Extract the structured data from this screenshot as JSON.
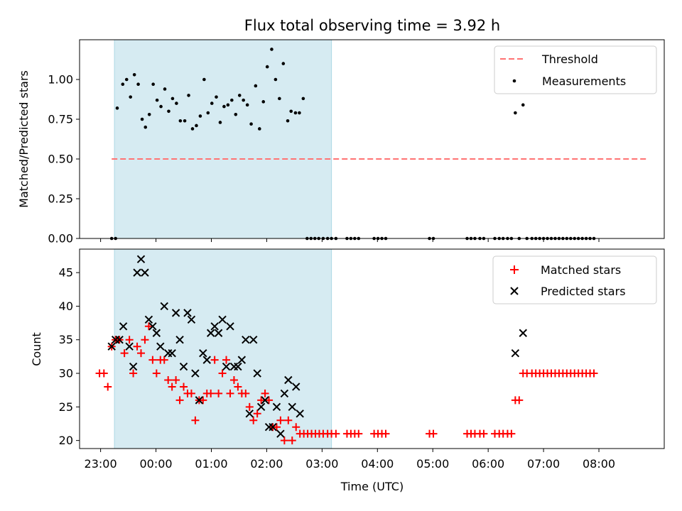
{
  "title": "Flux total observing time = 3.92 h",
  "xlabel": "Time (UTC)",
  "colors": {
    "shade": "#add8e6",
    "threshold": "#ff7373",
    "measure": "#000000",
    "matched": "#ff0000",
    "predicted": "#000000"
  },
  "chart_data": [
    {
      "type": "scatter",
      "ylabel": "Matched/Predicted stars",
      "ylim": [
        0,
        1.25
      ],
      "yticks": [
        0.0,
        0.25,
        0.5,
        0.75,
        1.0
      ],
      "ytick_labels": [
        "0.00",
        "0.25",
        "0.50",
        "0.75",
        "1.00"
      ],
      "xlim": [
        -1.38,
        9.18
      ],
      "shaded_span": [
        -0.75,
        3.17
      ],
      "threshold": {
        "value": 0.5,
        "x": [
          -0.8,
          8.9
        ],
        "label": "Threshold"
      },
      "series": [
        {
          "name": "Measurements",
          "points": [
            [
              -0.8,
              0
            ],
            [
              -0.73,
              0
            ],
            [
              -0.7,
              0.82
            ],
            [
              -0.6,
              0.97
            ],
            [
              -0.53,
              1.0
            ],
            [
              -0.46,
              0.89
            ],
            [
              -0.39,
              1.03
            ],
            [
              -0.32,
              0.97
            ],
            [
              -0.25,
              0.75
            ],
            [
              -0.19,
              0.7
            ],
            [
              -0.12,
              0.78
            ],
            [
              -0.05,
              0.97
            ],
            [
              0.02,
              0.87
            ],
            [
              0.09,
              0.83
            ],
            [
              0.16,
              0.94
            ],
            [
              0.23,
              0.8
            ],
            [
              0.3,
              0.88
            ],
            [
              0.37,
              0.85
            ],
            [
              0.44,
              0.74
            ],
            [
              0.52,
              0.74
            ],
            [
              0.59,
              0.9
            ],
            [
              0.66,
              0.69
            ],
            [
              0.73,
              0.71
            ],
            [
              0.8,
              0.77
            ],
            [
              0.87,
              1.0
            ],
            [
              0.94,
              0.79
            ],
            [
              1.01,
              0.85
            ],
            [
              1.09,
              0.89
            ],
            [
              1.16,
              0.73
            ],
            [
              1.23,
              0.83
            ],
            [
              1.3,
              0.84
            ],
            [
              1.37,
              0.87
            ],
            [
              1.44,
              0.78
            ],
            [
              1.51,
              0.9
            ],
            [
              1.58,
              0.87
            ],
            [
              1.65,
              0.84
            ],
            [
              1.72,
              0.72
            ],
            [
              1.8,
              0.96
            ],
            [
              1.87,
              0.69
            ],
            [
              1.94,
              0.86
            ],
            [
              2.01,
              1.08
            ],
            [
              2.09,
              1.19
            ],
            [
              2.16,
              1.0
            ],
            [
              2.23,
              0.88
            ],
            [
              2.3,
              1.1
            ],
            [
              2.38,
              0.74
            ],
            [
              2.44,
              0.8
            ],
            [
              2.52,
              0.79
            ],
            [
              2.59,
              0.79
            ],
            [
              2.66,
              0.88
            ],
            [
              2.73,
              0
            ],
            [
              2.8,
              0
            ],
            [
              2.87,
              0
            ],
            [
              2.94,
              0
            ],
            [
              3.02,
              0
            ],
            [
              3.1,
              0
            ],
            [
              3.17,
              0
            ],
            [
              3.25,
              0
            ],
            [
              3.45,
              0
            ],
            [
              3.52,
              0
            ],
            [
              3.59,
              0
            ],
            [
              3.66,
              0
            ],
            [
              3.94,
              0
            ],
            [
              4.01,
              0
            ],
            [
              4.08,
              0
            ],
            [
              4.15,
              0
            ],
            [
              4.94,
              0
            ],
            [
              5.01,
              0
            ],
            [
              5.62,
              0
            ],
            [
              5.69,
              0
            ],
            [
              5.76,
              0
            ],
            [
              5.85,
              0
            ],
            [
              5.92,
              0
            ],
            [
              6.12,
              0
            ],
            [
              6.2,
              0
            ],
            [
              6.27,
              0
            ],
            [
              6.35,
              0
            ],
            [
              6.42,
              0
            ],
            [
              6.49,
              0.79
            ],
            [
              6.56,
              0
            ],
            [
              6.63,
              0.84
            ],
            [
              6.7,
              0
            ],
            [
              6.79,
              0
            ],
            [
              6.86,
              0
            ],
            [
              6.93,
              0
            ],
            [
              7.0,
              0
            ],
            [
              7.07,
              0
            ],
            [
              7.14,
              0
            ],
            [
              7.21,
              0
            ],
            [
              7.28,
              0
            ],
            [
              7.35,
              0
            ],
            [
              7.42,
              0
            ],
            [
              7.49,
              0
            ],
            [
              7.56,
              0
            ],
            [
              7.63,
              0
            ],
            [
              7.7,
              0
            ],
            [
              7.77,
              0
            ],
            [
              7.84,
              0
            ],
            [
              7.91,
              0
            ]
          ]
        }
      ],
      "legend": [
        "Threshold",
        "Measurements"
      ],
      "legend_position": "top-right"
    },
    {
      "type": "scatter",
      "ylabel": "Count",
      "ylim": [
        18.8,
        48.5
      ],
      "yticks": [
        20,
        25,
        30,
        35,
        40,
        45
      ],
      "ytick_labels": [
        "20",
        "25",
        "30",
        "35",
        "40",
        "45"
      ],
      "xlim": [
        -1.38,
        9.18
      ],
      "shaded_span": [
        -0.75,
        3.17
      ],
      "xticks": [
        -1,
        0,
        1,
        2,
        3,
        4,
        5,
        6,
        7,
        8
      ],
      "xtick_labels": [
        "23:00",
        "00:00",
        "01:00",
        "02:00",
        "03:00",
        "04:00",
        "05:00",
        "06:00",
        "07:00",
        "08:00"
      ],
      "series": [
        {
          "name": "Matched stars",
          "marker": "plus",
          "points": [
            [
              -1.02,
              30
            ],
            [
              -0.94,
              30
            ],
            [
              -0.87,
              28
            ],
            [
              -0.8,
              34
            ],
            [
              -0.73,
              35
            ],
            [
              -0.66,
              35
            ],
            [
              -0.57,
              33
            ],
            [
              -0.48,
              35
            ],
            [
              -0.41,
              30
            ],
            [
              -0.34,
              34
            ],
            [
              -0.27,
              33
            ],
            [
              -0.2,
              35
            ],
            [
              -0.13,
              37
            ],
            [
              -0.06,
              32
            ],
            [
              0.01,
              30
            ],
            [
              0.08,
              32
            ],
            [
              0.15,
              32
            ],
            [
              0.22,
              29
            ],
            [
              0.29,
              28
            ],
            [
              0.36,
              29
            ],
            [
              0.43,
              26
            ],
            [
              0.5,
              28
            ],
            [
              0.57,
              27
            ],
            [
              0.64,
              27
            ],
            [
              0.71,
              23
            ],
            [
              0.78,
              26
            ],
            [
              0.85,
              26
            ],
            [
              0.92,
              27
            ],
            [
              0.99,
              27
            ],
            [
              1.06,
              32
            ],
            [
              1.13,
              27
            ],
            [
              1.2,
              30
            ],
            [
              1.27,
              32
            ],
            [
              1.34,
              27
            ],
            [
              1.41,
              29
            ],
            [
              1.48,
              28
            ],
            [
              1.55,
              27
            ],
            [
              1.62,
              27
            ],
            [
              1.69,
              25
            ],
            [
              1.76,
              23
            ],
            [
              1.83,
              24
            ],
            [
              1.9,
              26
            ],
            [
              1.97,
              27
            ],
            [
              2.04,
              26
            ],
            [
              2.11,
              22
            ],
            [
              2.18,
              22
            ],
            [
              2.25,
              23
            ],
            [
              2.32,
              20
            ],
            [
              2.39,
              23
            ],
            [
              2.46,
              20
            ],
            [
              2.53,
              22
            ],
            [
              2.6,
              21
            ],
            [
              2.67,
              21
            ],
            [
              2.74,
              21
            ],
            [
              2.81,
              21
            ],
            [
              2.88,
              21
            ],
            [
              2.95,
              21
            ],
            [
              3.02,
              21
            ],
            [
              3.1,
              21
            ],
            [
              3.17,
              21
            ],
            [
              3.25,
              21
            ],
            [
              3.45,
              21
            ],
            [
              3.52,
              21
            ],
            [
              3.59,
              21
            ],
            [
              3.66,
              21
            ],
            [
              3.94,
              21
            ],
            [
              4.01,
              21
            ],
            [
              4.08,
              21
            ],
            [
              4.15,
              21
            ],
            [
              4.94,
              21
            ],
            [
              5.01,
              21
            ],
            [
              5.62,
              21
            ],
            [
              5.69,
              21
            ],
            [
              5.76,
              21
            ],
            [
              5.85,
              21
            ],
            [
              5.92,
              21
            ],
            [
              6.12,
              21
            ],
            [
              6.2,
              21
            ],
            [
              6.27,
              21
            ],
            [
              6.35,
              21
            ],
            [
              6.42,
              21
            ],
            [
              6.49,
              26
            ],
            [
              6.56,
              26
            ],
            [
              6.63,
              30
            ],
            [
              6.7,
              30
            ],
            [
              6.79,
              30
            ],
            [
              6.86,
              30
            ],
            [
              6.93,
              30
            ],
            [
              7.0,
              30
            ],
            [
              7.07,
              30
            ],
            [
              7.14,
              30
            ],
            [
              7.21,
              30
            ],
            [
              7.28,
              30
            ],
            [
              7.35,
              30
            ],
            [
              7.42,
              30
            ],
            [
              7.49,
              30
            ],
            [
              7.56,
              30
            ],
            [
              7.63,
              30
            ],
            [
              7.7,
              30
            ],
            [
              7.77,
              30
            ],
            [
              7.84,
              30
            ],
            [
              7.91,
              30
            ]
          ]
        },
        {
          "name": "Predicted stars",
          "marker": "x",
          "points": [
            [
              -0.8,
              34
            ],
            [
              -0.73,
              35
            ],
            [
              -0.66,
              35
            ],
            [
              -0.59,
              37
            ],
            [
              -0.48,
              34
            ],
            [
              -0.41,
              31
            ],
            [
              -0.34,
              45
            ],
            [
              -0.27,
              47
            ],
            [
              -0.2,
              45
            ],
            [
              -0.13,
              38
            ],
            [
              -0.06,
              37
            ],
            [
              0.01,
              36
            ],
            [
              0.08,
              34
            ],
            [
              0.15,
              40
            ],
            [
              0.22,
              33
            ],
            [
              0.29,
              33
            ],
            [
              0.36,
              39
            ],
            [
              0.43,
              35
            ],
            [
              0.5,
              31
            ],
            [
              0.57,
              39
            ],
            [
              0.64,
              38
            ],
            [
              0.71,
              30
            ],
            [
              0.78,
              26
            ],
            [
              0.85,
              33
            ],
            [
              0.92,
              32
            ],
            [
              0.99,
              36
            ],
            [
              1.06,
              37
            ],
            [
              1.13,
              36
            ],
            [
              1.2,
              38
            ],
            [
              1.27,
              31
            ],
            [
              1.34,
              37
            ],
            [
              1.41,
              31
            ],
            [
              1.48,
              31
            ],
            [
              1.55,
              32
            ],
            [
              1.62,
              35
            ],
            [
              1.69,
              24
            ],
            [
              1.76,
              35
            ],
            [
              1.83,
              30
            ],
            [
              1.9,
              25
            ],
            [
              1.97,
              26
            ],
            [
              2.04,
              22
            ],
            [
              2.11,
              22
            ],
            [
              2.18,
              25
            ],
            [
              2.25,
              21
            ],
            [
              2.32,
              27
            ],
            [
              2.39,
              29
            ],
            [
              2.46,
              25
            ],
            [
              2.53,
              28
            ],
            [
              2.6,
              24
            ],
            [
              6.49,
              33
            ],
            [
              6.63,
              36
            ]
          ]
        }
      ],
      "legend": [
        "Matched stars",
        "Predicted stars"
      ],
      "legend_position": "top-right"
    }
  ]
}
